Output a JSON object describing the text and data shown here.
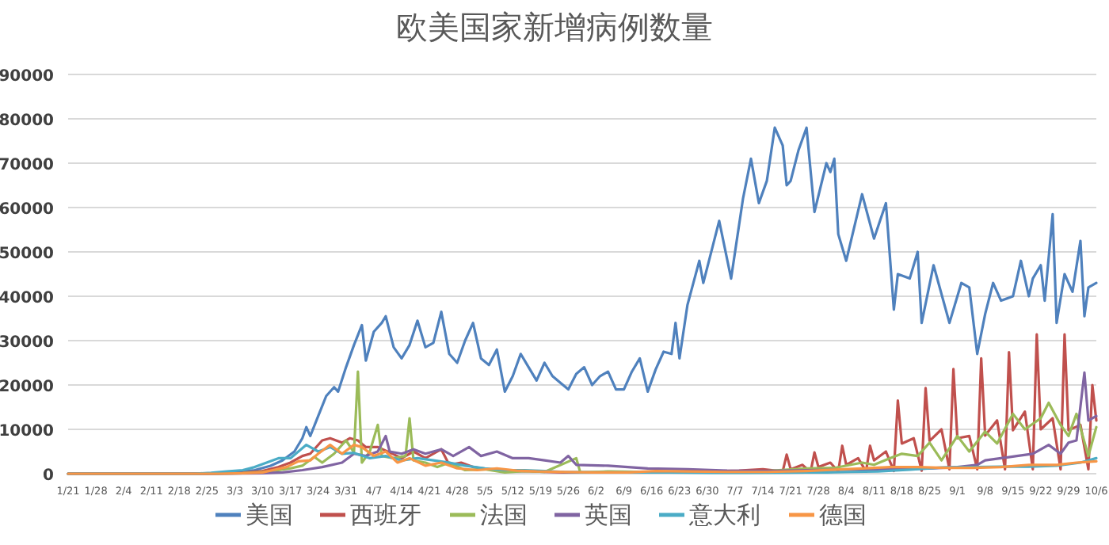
{
  "chart_data": {
    "type": "line",
    "title": "欧美国家新增病例数量",
    "grid": "y",
    "legend": "bottom",
    "xlim": [
      "--01-21",
      "--10-06"
    ],
    "ylim": [
      0,
      90000
    ],
    "yticks": [
      0,
      10000,
      20000,
      30000,
      40000,
      50000,
      60000,
      70000,
      80000,
      90000
    ],
    "xticks": [
      {
        "value": "--01-21",
        "label": "1/21"
      },
      {
        "value": "--01-28",
        "label": "1/28"
      },
      {
        "value": "--02-04",
        "label": "2/4"
      },
      {
        "value": "--02-11",
        "label": "2/11"
      },
      {
        "value": "--02-18",
        "label": "2/18"
      },
      {
        "value": "--02-25",
        "label": "2/25"
      },
      {
        "value": "--03-03",
        "label": "3/3"
      },
      {
        "value": "--03-10",
        "label": "3/10"
      },
      {
        "value": "--03-17",
        "label": "3/17"
      },
      {
        "value": "--03-24",
        "label": "3/24"
      },
      {
        "value": "--03-31",
        "label": "3/31"
      },
      {
        "value": "--04-07",
        "label": "4/7"
      },
      {
        "value": "--04-14",
        "label": "4/14"
      },
      {
        "value": "--04-21",
        "label": "4/21"
      },
      {
        "value": "--04-28",
        "label": "4/28"
      },
      {
        "value": "--05-05",
        "label": "5/5"
      },
      {
        "value": "--05-12",
        "label": "5/12"
      },
      {
        "value": "--05-19",
        "label": "5/19"
      },
      {
        "value": "--05-26",
        "label": "5/26"
      },
      {
        "value": "--06-02",
        "label": "6/2"
      },
      {
        "value": "--06-09",
        "label": "6/9"
      },
      {
        "value": "--06-16",
        "label": "6/16"
      },
      {
        "value": "--06-23",
        "label": "6/23"
      },
      {
        "value": "--06-30",
        "label": "6/30"
      },
      {
        "value": "--07-07",
        "label": "7/7"
      },
      {
        "value": "--07-14",
        "label": "7/14"
      },
      {
        "value": "--07-21",
        "label": "7/21"
      },
      {
        "value": "--07-28",
        "label": "7/28"
      },
      {
        "value": "--08-04",
        "label": "8/4"
      },
      {
        "value": "--08-11",
        "label": "8/11"
      },
      {
        "value": "--08-18",
        "label": "8/18"
      },
      {
        "value": "--08-25",
        "label": "8/25"
      },
      {
        "value": "--09-01",
        "label": "9/1"
      },
      {
        "value": "--09-08",
        "label": "9/8"
      },
      {
        "value": "--09-15",
        "label": "9/15"
      },
      {
        "value": "--09-22",
        "label": "9/22"
      },
      {
        "value": "--09-29",
        "label": "9/29"
      },
      {
        "value": "--10-06",
        "label": "10/6"
      }
    ],
    "series": [
      {
        "name": "美国",
        "color": "#4f81bd",
        "x": [
          "--01-21",
          "--02-20",
          "--02-28",
          "--03-03",
          "--03-08",
          "--03-12",
          "--03-15",
          "--03-18",
          "--03-20",
          "--03-21",
          "--03-22",
          "--03-24",
          "--03-26",
          "--03-28",
          "--03-29",
          "--03-31",
          "--04-02",
          "--04-04",
          "--04-05",
          "--04-07",
          "--04-09",
          "--04-10",
          "--04-12",
          "--04-14",
          "--04-16",
          "--04-18",
          "--04-20",
          "--04-22",
          "--04-24",
          "--04-26",
          "--04-28",
          "--04-30",
          "--05-02",
          "--05-04",
          "--05-06",
          "--05-08",
          "--05-10",
          "--05-12",
          "--05-14",
          "--05-16",
          "--05-18",
          "--05-20",
          "--05-22",
          "--05-24",
          "--05-26",
          "--05-28",
          "--05-30",
          "--06-01",
          "--06-03",
          "--06-05",
          "--06-07",
          "--06-09",
          "--06-11",
          "--06-13",
          "--06-15",
          "--06-17",
          "--06-19",
          "--06-21",
          "--06-22",
          "--06-23",
          "--06-25",
          "--06-28",
          "--06-29",
          "--07-03",
          "--07-06",
          "--07-09",
          "--07-11",
          "--07-13",
          "--07-15",
          "--07-17",
          "--07-19",
          "--07-20",
          "--07-21",
          "--07-23",
          "--07-25",
          "--07-27",
          "--07-30",
          "--07-31",
          "--08-01",
          "--08-02",
          "--08-04",
          "--08-08",
          "--08-11",
          "--08-14",
          "--08-16",
          "--08-17",
          "--08-20",
          "--08-22",
          "--08-23",
          "--08-26",
          "--08-30",
          "--09-02",
          "--09-04",
          "--09-06",
          "--09-08",
          "--09-10",
          "--09-12",
          "--09-15",
          "--09-17",
          "--09-19",
          "--09-20",
          "--09-22",
          "--09-23",
          "--09-25",
          "--09-26",
          "--09-28",
          "--09-30",
          "--10-02",
          "--10-03",
          "--10-04",
          "--10-06"
        ],
        "values": [
          0,
          0,
          50,
          400,
          800,
          1800,
          3000,
          5000,
          8000,
          10500,
          8500,
          13000,
          17500,
          19500,
          18500,
          24000,
          29000,
          33500,
          25500,
          32000,
          34000,
          35500,
          28500,
          26000,
          29000,
          34500,
          28500,
          29500,
          36500,
          27000,
          25000,
          30000,
          34000,
          26000,
          24500,
          28000,
          18500,
          22000,
          27000,
          24000,
          21000,
          25000,
          22000,
          20500,
          19000,
          22500,
          24000,
          20000,
          22000,
          23000,
          19000,
          19000,
          23000,
          26000,
          18500,
          23500,
          27500,
          27000,
          34000,
          26000,
          38000,
          48000,
          43000,
          57000,
          44000,
          62000,
          71000,
          61000,
          66000,
          78000,
          74000,
          65000,
          66000,
          73000,
          78000,
          59000,
          70000,
          68000,
          71000,
          54000,
          48000,
          63000,
          53000,
          61000,
          37000,
          45000,
          44000,
          50000,
          34000,
          47000,
          34000,
          43000,
          42000,
          27000,
          36000,
          43000,
          39000,
          40000,
          48000,
          40000,
          44000,
          47000,
          39000,
          58500,
          34000,
          45000,
          41000,
          52500,
          35500,
          42000,
          43000
        ]
      },
      {
        "name": "西班牙",
        "color": "#c0504d",
        "x": [
          "--01-21",
          "--02-25",
          "--03-05",
          "--03-10",
          "--03-14",
          "--03-17",
          "--03-20",
          "--03-22",
          "--03-25",
          "--03-27",
          "--03-30",
          "--04-01",
          "--04-03",
          "--04-05",
          "--04-08",
          "--04-11",
          "--04-14",
          "--04-17",
          "--04-20",
          "--04-24",
          "--04-26",
          "--04-29",
          "--05-02",
          "--05-06",
          "--05-10",
          "--05-15",
          "--05-20",
          "--05-25",
          "--06-01",
          "--06-10",
          "--06-20",
          "--06-30",
          "--07-08",
          "--07-14",
          "--07-19",
          "--07-20",
          "--07-21",
          "--07-24",
          "--07-26",
          "--07-27",
          "--07-28",
          "--07-31",
          "--08-02",
          "--08-03",
          "--08-04",
          "--08-07",
          "--08-09",
          "--08-10",
          "--08-11",
          "--08-14",
          "--08-16",
          "--08-17",
          "--08-18",
          "--08-21",
          "--08-23",
          "--08-24",
          "--08-25",
          "--08-28",
          "--08-30",
          "--08-31",
          "--09-01",
          "--09-04",
          "--09-06",
          "--09-07",
          "--09-08",
          "--09-11",
          "--09-13",
          "--09-14",
          "--09-15",
          "--09-18",
          "--09-20",
          "--09-21",
          "--09-22",
          "--09-25",
          "--09-27",
          "--09-28",
          "--09-29",
          "--10-02",
          "--10-04",
          "--10-05",
          "--10-06"
        ],
        "values": [
          0,
          0,
          200,
          600,
          1500,
          2500,
          4000,
          4500,
          7500,
          8000,
          7000,
          8000,
          7500,
          6000,
          6000,
          4800,
          3500,
          5000,
          3500,
          5500,
          2000,
          2500,
          1500,
          1000,
          500,
          600,
          400,
          300,
          300,
          300,
          400,
          500,
          700,
          1000,
          500,
          4300,
          1000,
          2000,
          300,
          4800,
          1500,
          2500,
          500,
          6300,
          2000,
          3500,
          500,
          6300,
          3000,
          5000,
          600,
          16500,
          6800,
          8000,
          700,
          19300,
          7400,
          10000,
          1000,
          23600,
          8000,
          8500,
          1000,
          26000,
          8600,
          12000,
          1000,
          27400,
          9800,
          14000,
          1000,
          31400,
          10000,
          12500,
          1000,
          31400,
          9800,
          11000,
          1000,
          20000,
          12000
        ]
      },
      {
        "name": "法国",
        "color": "#9bbb59",
        "x": [
          "--01-21",
          "--02-28",
          "--03-05",
          "--03-10",
          "--03-14",
          "--03-17",
          "--03-20",
          "--03-23",
          "--03-25",
          "--03-28",
          "--03-31",
          "--04-02",
          "--04-03",
          "--04-04",
          "--04-06",
          "--04-08",
          "--04-09",
          "--04-12",
          "--04-15",
          "--04-16",
          "--04-17",
          "--04-20",
          "--04-23",
          "--04-26",
          "--04-30",
          "--05-05",
          "--05-10",
          "--05-15",
          "--05-20",
          "--05-28",
          "--05-29",
          "--06-05",
          "--06-15",
          "--06-25",
          "--07-05",
          "--07-15",
          "--07-25",
          "--08-01",
          "--08-08",
          "--08-11",
          "--08-15",
          "--08-18",
          "--08-22",
          "--08-25",
          "--08-28",
          "--09-01",
          "--09-04",
          "--09-08",
          "--09-11",
          "--09-15",
          "--09-18",
          "--09-22",
          "--09-24",
          "--09-27",
          "--09-29",
          "--10-01",
          "--10-04",
          "--10-06"
        ],
        "values": [
          0,
          0,
          100,
          400,
          800,
          1200,
          1800,
          3800,
          2500,
          4500,
          7500,
          4800,
          23000,
          2500,
          5000,
          11000,
          4000,
          3500,
          4000,
          12500,
          3000,
          2500,
          1500,
          2500,
          800,
          1000,
          300,
          600,
          400,
          3500,
          300,
          500,
          400,
          500,
          500,
          600,
          1200,
          1300,
          2500,
          2000,
          3500,
          4500,
          4000,
          7000,
          3000,
          8500,
          5000,
          9500,
          6800,
          13500,
          10000,
          12500,
          16000,
          11000,
          8500,
          13500,
          4000,
          10500
        ]
      },
      {
        "name": "英国",
        "color": "#8064a2",
        "x": [
          "--01-21",
          "--03-01",
          "--03-10",
          "--03-15",
          "--03-20",
          "--03-25",
          "--03-30",
          "--04-02",
          "--04-05",
          "--04-08",
          "--04-10",
          "--04-11",
          "--04-14",
          "--04-17",
          "--04-20",
          "--04-24",
          "--04-27",
          "--05-01",
          "--05-04",
          "--05-08",
          "--05-12",
          "--05-16",
          "--05-20",
          "--05-24",
          "--05-26",
          "--05-28",
          "--06-05",
          "--06-15",
          "--06-25",
          "--07-05",
          "--07-15",
          "--07-25",
          "--08-05",
          "--08-15",
          "--08-25",
          "--09-01",
          "--09-06",
          "--09-08",
          "--09-12",
          "--09-16",
          "--09-20",
          "--09-24",
          "--09-27",
          "--09-29",
          "--10-01",
          "--10-03",
          "--10-04",
          "--10-06"
        ],
        "values": [
          0,
          0,
          100,
          300,
          800,
          1500,
          2500,
          4500,
          4000,
          5000,
          8500,
          5000,
          4500,
          5500,
          4500,
          5500,
          4000,
          6000,
          4000,
          5000,
          3500,
          3500,
          3000,
          2500,
          4000,
          2000,
          1800,
          1200,
          1000,
          700,
          600,
          800,
          900,
          1000,
          1200,
          1500,
          2000,
          3000,
          3500,
          4000,
          4500,
          6500,
          4500,
          7000,
          7500,
          22800,
          12000,
          13000
        ]
      },
      {
        "name": "意大利",
        "color": "#4bacc6",
        "x": [
          "--01-21",
          "--02-22",
          "--02-26",
          "--03-01",
          "--03-05",
          "--03-08",
          "--03-11",
          "--03-14",
          "--03-17",
          "--03-19",
          "--03-21",
          "--03-24",
          "--03-27",
          "--03-30",
          "--04-02",
          "--04-06",
          "--04-10",
          "--04-14",
          "--04-18",
          "--04-22",
          "--04-26",
          "--04-30",
          "--05-05",
          "--05-10",
          "--05-15",
          "--05-20",
          "--05-25",
          "--06-01",
          "--06-10",
          "--06-20",
          "--07-01",
          "--07-10",
          "--07-20",
          "--07-30",
          "--08-05",
          "--08-12",
          "--08-20",
          "--08-28",
          "--09-05",
          "--09-12",
          "--09-19",
          "--09-26",
          "--10-02",
          "--10-06"
        ],
        "values": [
          0,
          0,
          200,
          500,
          800,
          1500,
          2500,
          3500,
          3500,
          5000,
          6500,
          5000,
          6000,
          4500,
          4700,
          3500,
          4000,
          3000,
          3500,
          3000,
          2500,
          1800,
          1200,
          800,
          800,
          600,
          400,
          300,
          300,
          300,
          200,
          200,
          250,
          300,
          400,
          500,
          900,
          1400,
          1500,
          1600,
          1600,
          1800,
          2500,
          3500
        ]
      },
      {
        "name": "德国",
        "color": "#f79646",
        "x": [
          "--01-21",
          "--02-28",
          "--03-05",
          "--03-10",
          "--03-13",
          "--03-16",
          "--03-19",
          "--03-22",
          "--03-24",
          "--03-27",
          "--03-30",
          "--04-02",
          "--04-04",
          "--04-07",
          "--04-10",
          "--04-13",
          "--04-16",
          "--04-20",
          "--04-24",
          "--04-28",
          "--05-03",
          "--05-08",
          "--05-13",
          "--05-18",
          "--05-25",
          "--06-01",
          "--06-10",
          "--06-17",
          "--06-25",
          "--07-05",
          "--07-15",
          "--07-25",
          "--08-01",
          "--08-08",
          "--08-15",
          "--08-22",
          "--08-29",
          "--09-05",
          "--09-12",
          "--09-19",
          "--09-26",
          "--10-01",
          "--10-06"
        ],
        "values": [
          0,
          0,
          100,
          300,
          900,
          1500,
          2800,
          3000,
          4500,
          6500,
          4500,
          6500,
          6000,
          4000,
          5000,
          2500,
          3500,
          1800,
          2500,
          1200,
          800,
          1200,
          700,
          500,
          400,
          300,
          300,
          600,
          500,
          400,
          400,
          600,
          900,
          1200,
          1500,
          1500,
          1300,
          1300,
          1500,
          2000,
          2000,
          2500,
          2800
        ]
      }
    ]
  }
}
